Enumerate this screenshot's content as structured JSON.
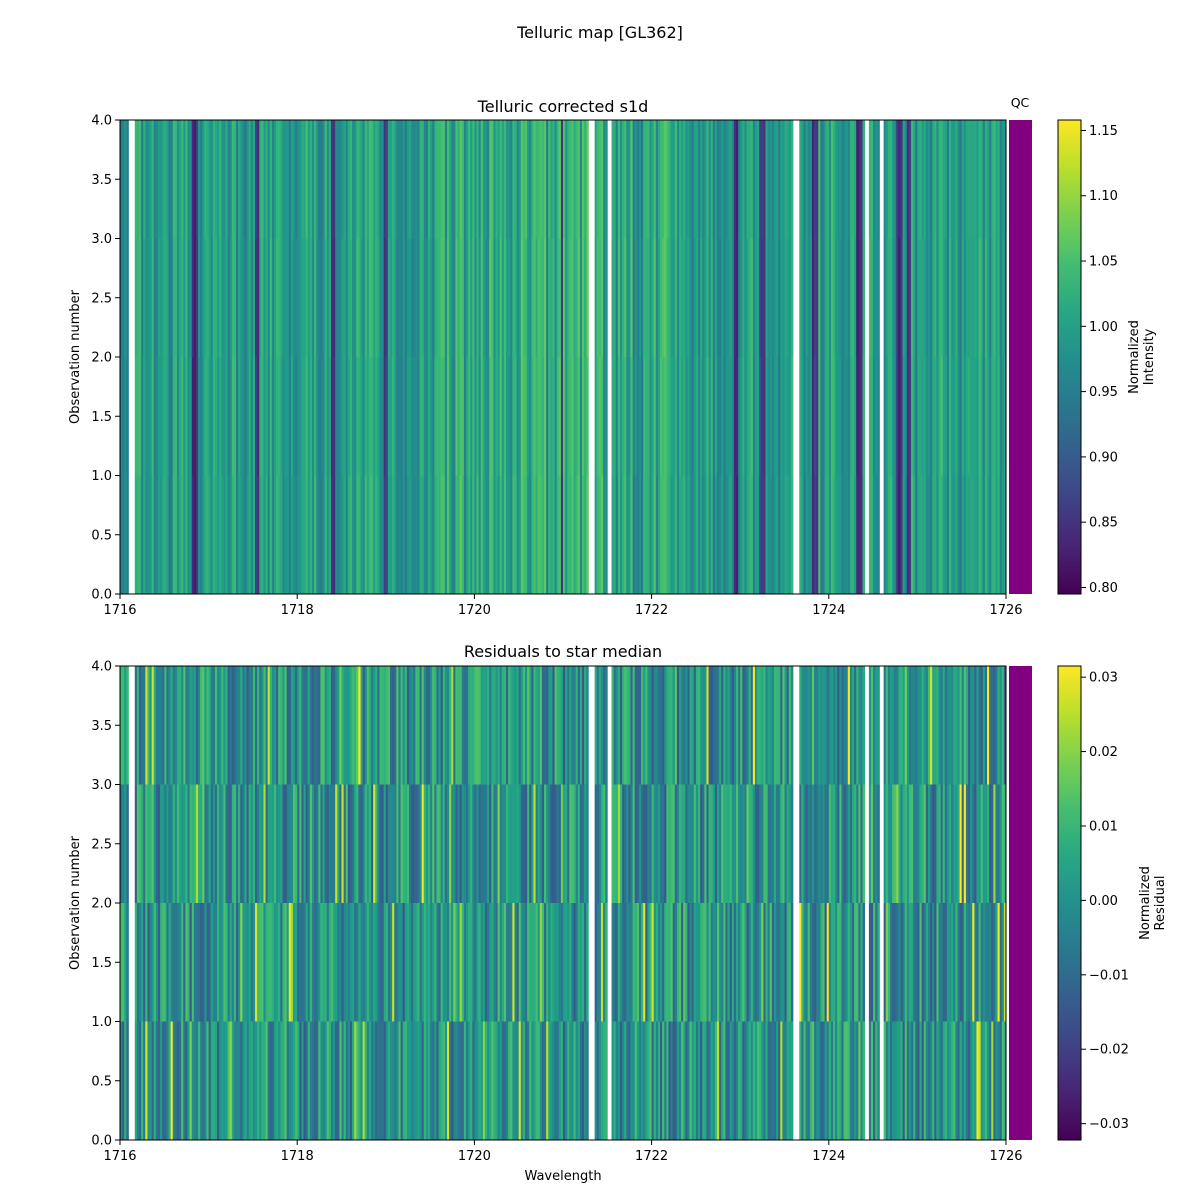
{
  "figure": {
    "title": "Telluric map [GL362]"
  },
  "chart_data": [
    {
      "type": "heatmap",
      "title": "Telluric corrected s1d",
      "xlabel": "",
      "ylabel": "Observation number",
      "xlim": [
        1716,
        1726
      ],
      "ylim": [
        0.0,
        4.0
      ],
      "x_ticks": [
        "1716",
        "1718",
        "1720",
        "1722",
        "1724",
        "1726"
      ],
      "y_ticks": [
        "0.0",
        "0.5",
        "1.0",
        "1.5",
        "2.0",
        "2.5",
        "3.0",
        "3.5",
        "4.0"
      ],
      "rows": 4,
      "colormap": "viridis",
      "value_range": [
        0.795,
        1.158
      ],
      "gaps_wavelength": [
        [
          1716.1,
          1716.17
        ],
        [
          1721.28,
          1721.35
        ],
        [
          1721.5,
          1721.55
        ],
        [
          1723.6,
          1723.66
        ],
        [
          1724.4,
          1724.46
        ],
        [
          1724.58,
          1724.63
        ]
      ],
      "absorption_lines": [
        1716.85,
        1717.55,
        1718.4,
        1719.0,
        1720.95,
        1721.0,
        1722.95,
        1723.25,
        1723.85,
        1724.35,
        1724.8,
        1724.9
      ],
      "qc_label": "QC",
      "qc_color": "#800080",
      "colorbar": {
        "label": [
          "Normalized",
          "Intensity"
        ],
        "ticks": [
          "0.80",
          "0.85",
          "0.90",
          "0.95",
          "1.00",
          "1.05",
          "1.10",
          "1.15"
        ],
        "tick_values": [
          0.8,
          0.85,
          0.9,
          0.95,
          1.0,
          1.05,
          1.1,
          1.15
        ]
      }
    },
    {
      "type": "heatmap",
      "title": "Residuals to star median",
      "xlabel": "Wavelength",
      "ylabel": "Observation number",
      "xlim": [
        1716,
        1726
      ],
      "ylim": [
        0.0,
        4.0
      ],
      "x_ticks": [
        "1716",
        "1718",
        "1720",
        "1722",
        "1724",
        "1726"
      ],
      "y_ticks": [
        "0.0",
        "0.5",
        "1.0",
        "1.5",
        "2.0",
        "2.5",
        "3.0",
        "3.5",
        "4.0"
      ],
      "rows": 4,
      "colormap": "viridis",
      "value_range": [
        -0.0322,
        0.0315
      ],
      "gaps_wavelength": [
        [
          1716.1,
          1716.17
        ],
        [
          1721.28,
          1721.35
        ],
        [
          1721.5,
          1721.55
        ],
        [
          1723.6,
          1723.66
        ],
        [
          1724.4,
          1724.46
        ],
        [
          1724.58,
          1724.63
        ]
      ],
      "qc_label": "",
      "qc_color": "#800080",
      "colorbar": {
        "label": [
          "Normalized",
          "Residual"
        ],
        "ticks": [
          "−0.03",
          "−0.02",
          "−0.01",
          "0.00",
          "0.01",
          "0.02",
          "0.03"
        ],
        "tick_values": [
          -0.03,
          -0.02,
          -0.01,
          0.0,
          0.01,
          0.02,
          0.03
        ]
      }
    }
  ]
}
